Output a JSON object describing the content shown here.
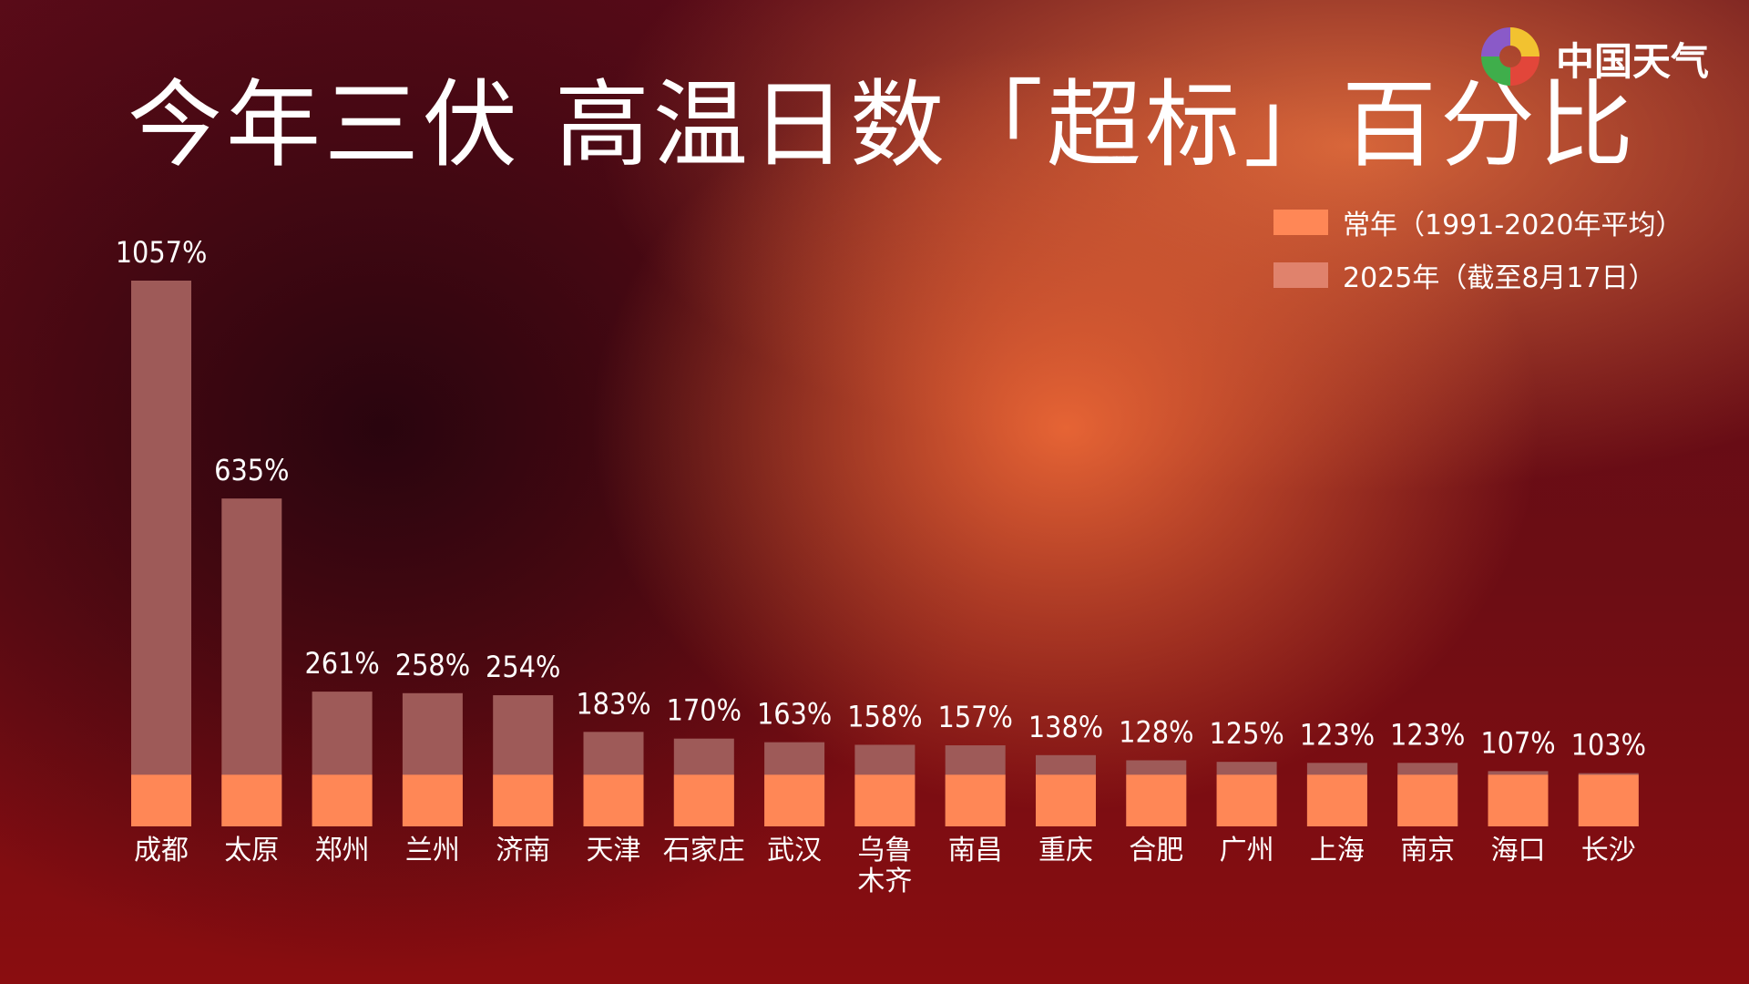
{
  "title": "今年三伏 高温日数「超标」百分比",
  "logo": {
    "text": "中国天气",
    "icon": "china-weather-swirl-logo"
  },
  "colors": {
    "normal": "#ff8756",
    "year2025": "#9e5a58"
  },
  "legend": [
    {
      "label": "常年（1991-2020年平均）",
      "color": "#ff8756"
    },
    {
      "label": "2025年（截至8月17日）",
      "color": "#e0826c"
    }
  ],
  "chart_data": {
    "type": "bar",
    "categories": [
      "成都",
      "太原",
      "郑州",
      "兰州",
      "济南",
      "天津",
      "石家庄",
      "武汉",
      "乌鲁木齐",
      "南昌",
      "重庆",
      "合肥",
      "广州",
      "上海",
      "南京",
      "海口",
      "长沙"
    ],
    "category_lines": [
      [
        "成都"
      ],
      [
        "太原"
      ],
      [
        "郑州"
      ],
      [
        "兰州"
      ],
      [
        "济南"
      ],
      [
        "天津"
      ],
      [
        "石家庄"
      ],
      [
        "武汉"
      ],
      [
        "乌鲁",
        "木齐"
      ],
      [
        "南昌"
      ],
      [
        "重庆"
      ],
      [
        "合肥"
      ],
      [
        "广州"
      ],
      [
        "上海"
      ],
      [
        "南京"
      ],
      [
        "海口"
      ],
      [
        "长沙"
      ]
    ],
    "series": [
      {
        "name": "常年（1991-2020年平均）",
        "values": [
          100,
          100,
          100,
          100,
          100,
          100,
          100,
          100,
          100,
          100,
          100,
          100,
          100,
          100,
          100,
          100,
          100
        ]
      },
      {
        "name": "2025年（截至8月17日）",
        "values": [
          1057,
          635,
          261,
          258,
          254,
          183,
          170,
          163,
          158,
          157,
          138,
          128,
          125,
          123,
          123,
          107,
          103
        ]
      }
    ],
    "data_labels": [
      "1057%",
      "635%",
      "261%",
      "258%",
      "254%",
      "183%",
      "170%",
      "163%",
      "158%",
      "157%",
      "138%",
      "128%",
      "125%",
      "123%",
      "123%",
      "107%",
      "103%"
    ],
    "ylim": [
      0,
      1057
    ],
    "grid": false,
    "legend_position": "top-right"
  }
}
